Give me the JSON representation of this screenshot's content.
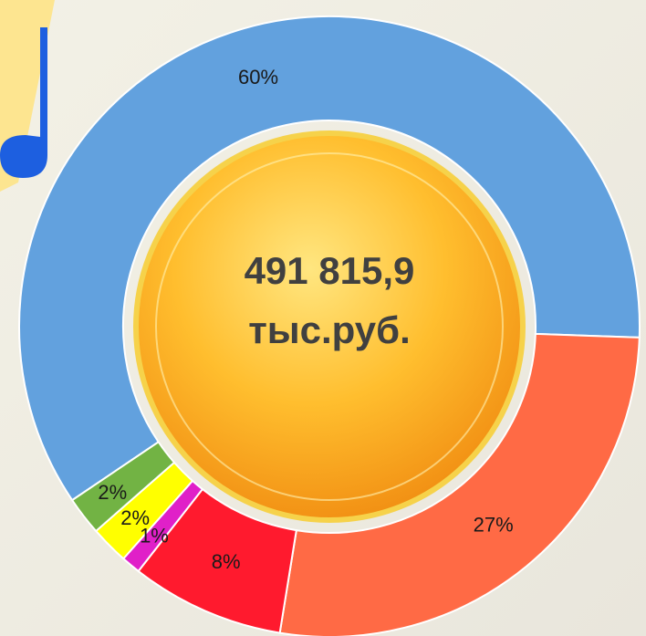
{
  "chart_data": {
    "type": "donut",
    "center_text": [
      "491 815,9",
      "тыс.руб."
    ],
    "categories": [
      null,
      null,
      null,
      null,
      null,
      null
    ],
    "values": [
      60,
      27,
      8,
      1,
      2,
      2
    ],
    "value_labels": [
      "60%",
      "27%",
      "8%",
      "1%",
      "2%",
      "2%"
    ],
    "colors": [
      "#62a1de",
      "#ff6a45",
      "#ff1a2e",
      "#e020c8",
      "#ffff00",
      "#72b344"
    ]
  }
}
